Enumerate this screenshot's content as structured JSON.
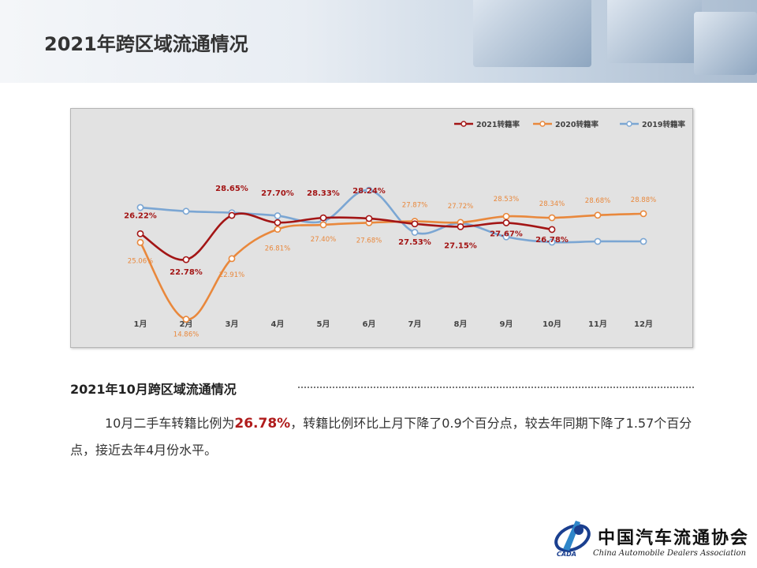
{
  "header": {
    "title": "2021年跨区域流通情况"
  },
  "chart_data": {
    "type": "line",
    "categories": [
      "1月",
      "2月",
      "3月",
      "4月",
      "5月",
      "6月",
      "7月",
      "8月",
      "9月",
      "10月",
      "11月",
      "12月"
    ],
    "series": [
      {
        "name": "2021转籍率",
        "color": "#a31515",
        "values": [
          26.22,
          22.78,
          28.65,
          27.7,
          28.33,
          28.24,
          27.53,
          27.15,
          27.67,
          26.78,
          null,
          null
        ]
      },
      {
        "name": "2020转籍率",
        "color": "#e9883c",
        "values": [
          25.06,
          14.86,
          22.91,
          26.81,
          27.4,
          27.68,
          27.87,
          27.72,
          28.53,
          28.34,
          28.68,
          28.88
        ]
      },
      {
        "name": "2019转籍率",
        "color": "#7ba6d3",
        "values": [
          29.7,
          29.2,
          29.0,
          28.6,
          27.9,
          32.0,
          26.4,
          27.6,
          25.8,
          25.1,
          25.2,
          25.2
        ]
      }
    ],
    "data_labels": {
      "2021转籍率": [
        "26.22%",
        "22.78%",
        "28.65%",
        "27.70%",
        "28.33%",
        "28.24%",
        "27.53%",
        "27.15%",
        "27.67%",
        "26.78%"
      ],
      "2020转籍率": [
        "25.06%",
        "14.86%",
        "22.91%",
        "26.81%",
        "27.40%",
        "27.68%",
        "27.87%",
        "27.72%",
        "28.53%",
        "28.34%",
        "28.68%",
        "28.88%"
      ]
    },
    "legend_position": "top-right",
    "grid": false,
    "ylim": [
      12,
      34
    ]
  },
  "section": {
    "title": "2021年10月跨区域流通情况"
  },
  "paragraph": {
    "part1": "10月二手车转籍比例为",
    "highlight": "26.78%",
    "part2": "，转籍比例环比上月下降了0.9个百分点，较去年同期下降了1.57个百分点，接近去年4月份水平。"
  },
  "footer": {
    "logo_text": "中国汽车流通协会",
    "logo_subtitle": "China Automobile Dealers Association",
    "logo_abbr": "CADA"
  }
}
